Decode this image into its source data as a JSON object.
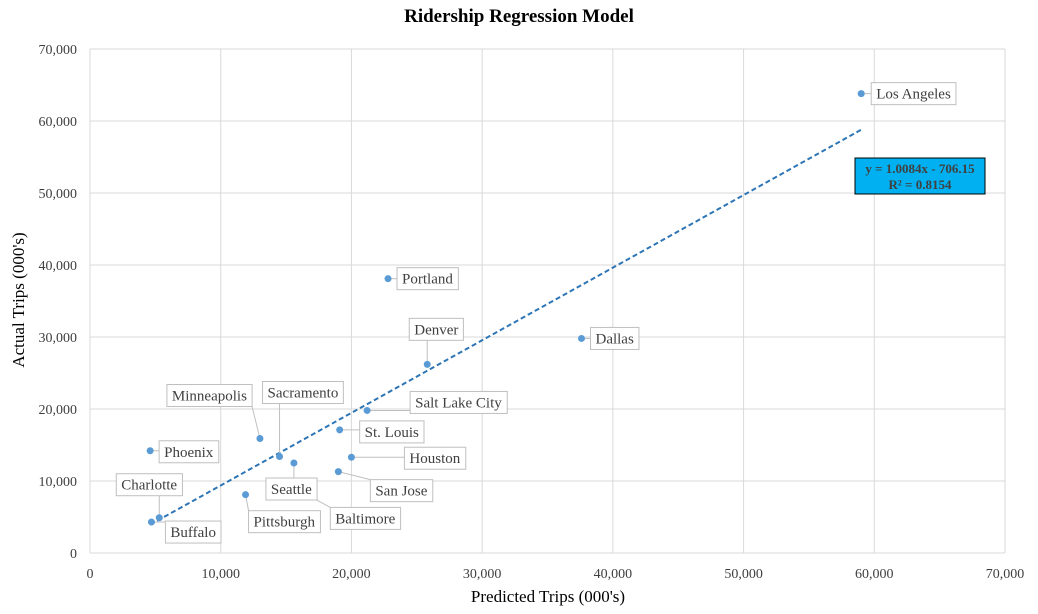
{
  "chart_data": {
    "type": "scatter",
    "title": "Ridership Regression Model",
    "xlabel": "Predicted Trips (000's)",
    "ylabel": "Actual Trips (000's)",
    "xlim": [
      0,
      70000
    ],
    "ylim": [
      0,
      70000
    ],
    "x_ticks": [
      0,
      10000,
      20000,
      30000,
      40000,
      50000,
      60000,
      70000
    ],
    "y_ticks": [
      0,
      10000,
      20000,
      30000,
      40000,
      50000,
      60000,
      70000
    ],
    "x_tick_labels": [
      "0",
      "10,000",
      "20,000",
      "30,000",
      "40,000",
      "50,000",
      "60,000",
      "70,000"
    ],
    "y_tick_labels": [
      "0",
      "10,000",
      "20,000",
      "30,000",
      "40,000",
      "50,000",
      "60,000",
      "70,000"
    ],
    "grid": true,
    "legend": "none",
    "colors": {
      "points": "#5b9bd5",
      "trendline": "#2e75b6",
      "grid": "#d9d9d9",
      "equation_box": "#00b0f0",
      "label_border": "#bfbfbf",
      "text": "#404040"
    },
    "points": [
      {
        "label": "Los Angeles",
        "x": 59000,
        "y": 63800
      },
      {
        "label": "Portland",
        "x": 22800,
        "y": 38100
      },
      {
        "label": "Dallas",
        "x": 37600,
        "y": 29800
      },
      {
        "label": "Denver",
        "x": 25800,
        "y": 26200
      },
      {
        "label": "Salt Lake City",
        "x": 21200,
        "y": 19800
      },
      {
        "label": "Minneapolis",
        "x": 13000,
        "y": 15900
      },
      {
        "label": "Sacramento",
        "x": 14500,
        "y": 13400
      },
      {
        "label": "St. Louis",
        "x": 19100,
        "y": 17100
      },
      {
        "label": "Houston",
        "x": 20000,
        "y": 13300
      },
      {
        "label": "Seattle",
        "x": 15600,
        "y": 12500
      },
      {
        "label": "San Jose",
        "x": 19000,
        "y": 11300
      },
      {
        "label": "Phoenix",
        "x": 4600,
        "y": 14200
      },
      {
        "label": "Charlotte",
        "x": 5300,
        "y": 4900
      },
      {
        "label": "Buffalo",
        "x": 4700,
        "y": 4300
      },
      {
        "label": "Pittsburgh",
        "x": 11900,
        "y": 8100
      },
      {
        "label": "Baltimore",
        "x": 16700,
        "y": 8000
      }
    ],
    "trendline": {
      "style": "dashed",
      "slope": 1.0084,
      "intercept": -706.15,
      "x_range": [
        4600,
        59000
      ],
      "equation": "y = 1.0084x - 706.15",
      "r_squared": "R² = 0.8154"
    }
  }
}
